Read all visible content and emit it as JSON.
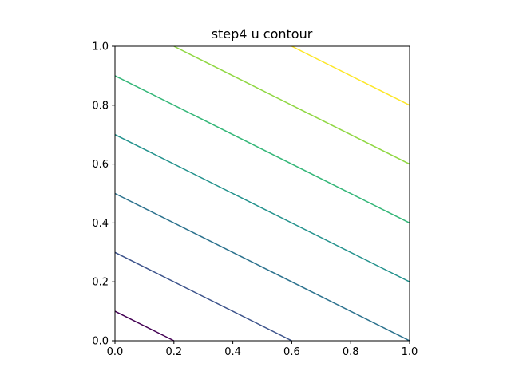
{
  "chart_data": {
    "type": "contour",
    "title": "step4 u contour",
    "xlabel": "",
    "ylabel": "",
    "xlim": [
      0,
      1
    ],
    "ylim": [
      0,
      1
    ],
    "grid": false,
    "x_ticks": [
      "0.0",
      "0.2",
      "0.4",
      "0.6",
      "0.8",
      "1.0"
    ],
    "y_ticks": [
      "0.0",
      "0.2",
      "0.4",
      "0.6",
      "0.8",
      "1.0"
    ],
    "contours": [
      {
        "color": "#440154",
        "points": [
          [
            0.0,
            0.1
          ],
          [
            0.2,
            0.0
          ]
        ]
      },
      {
        "color": "#3b528b",
        "points": [
          [
            0.0,
            0.3
          ],
          [
            0.6,
            0.0
          ]
        ]
      },
      {
        "color": "#2c728e",
        "points": [
          [
            0.0,
            0.5
          ],
          [
            1.0,
            0.0
          ]
        ]
      },
      {
        "color": "#21918c",
        "points": [
          [
            0.0,
            0.7
          ],
          [
            1.0,
            0.2
          ]
        ]
      },
      {
        "color": "#35b779",
        "points": [
          [
            0.0,
            0.9
          ],
          [
            1.0,
            0.4
          ]
        ]
      },
      {
        "color": "#90d743",
        "points": [
          [
            0.2,
            1.0
          ],
          [
            1.0,
            0.6
          ]
        ]
      },
      {
        "color": "#fde725",
        "points": [
          [
            0.6,
            1.0
          ],
          [
            1.0,
            0.8
          ]
        ]
      }
    ]
  }
}
